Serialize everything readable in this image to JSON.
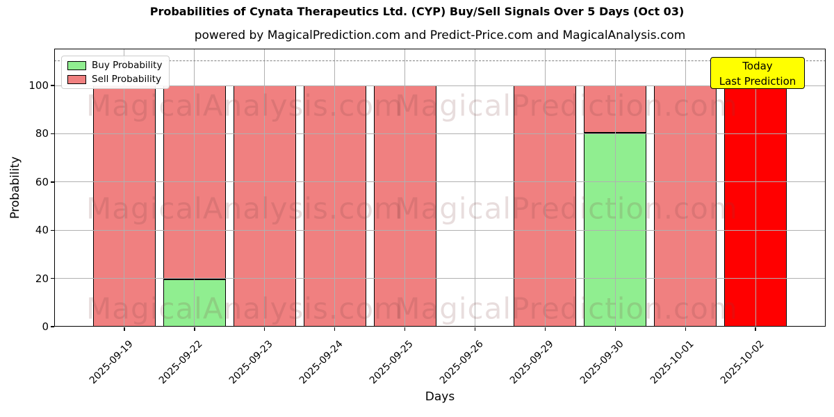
{
  "page": {
    "title": "Probabilities of Cynata Therapeutics Ltd. (CYP) Buy/Sell Signals Over 5 Days (Oct 03)",
    "subtitle": "powered by MagicalPrediction.com and Predict-Price.com and MagicalAnalysis.com"
  },
  "legend": {
    "items": [
      {
        "label": "Buy Probability",
        "color": "#90ee90"
      },
      {
        "label": "Sell Probability",
        "color": "#f08080"
      }
    ]
  },
  "annotation": {
    "line1": "Today",
    "line2": "Last Prediction",
    "bg": "#ffff00"
  },
  "watermarks": {
    "left": "MagicalAnalysis.com",
    "right": "MagicalPrediction.com"
  },
  "chart_data": {
    "type": "bar",
    "stacked": true,
    "title": "Probabilities of Cynata Therapeutics Ltd. (CYP) Buy/Sell Signals Over 5 Days (Oct 03)",
    "categories": [
      "2025-09-19",
      "2025-09-22",
      "2025-09-23",
      "2025-09-24",
      "2025-09-25",
      "2025-09-26",
      "2025-09-29",
      "2025-09-30",
      "2025-10-01",
      "2025-10-02"
    ],
    "series": [
      {
        "name": "Buy Probability",
        "color": "#90ee90",
        "values": [
          0,
          19.5,
          0,
          0,
          0,
          null,
          0,
          80.4,
          0,
          0
        ]
      },
      {
        "name": "Sell Probability",
        "color": "#f08080",
        "values": [
          100,
          80.5,
          100,
          100,
          100,
          null,
          100,
          19.6,
          100,
          100
        ]
      }
    ],
    "today": {
      "index": 9,
      "color": "#ff0000",
      "label": "Today / Last Prediction"
    },
    "xlabel": "Days",
    "ylabel": "Probability",
    "yticks": [
      0,
      20,
      40,
      60,
      80,
      100
    ],
    "ylim": [
      0,
      115.3
    ],
    "dashed_line_y": 110,
    "grid": true,
    "legend_position": "upper left",
    "colors": {
      "bar_edge": "#000000",
      "grid": "#b0b0b0",
      "guide_line": "#7f7f7f"
    }
  }
}
